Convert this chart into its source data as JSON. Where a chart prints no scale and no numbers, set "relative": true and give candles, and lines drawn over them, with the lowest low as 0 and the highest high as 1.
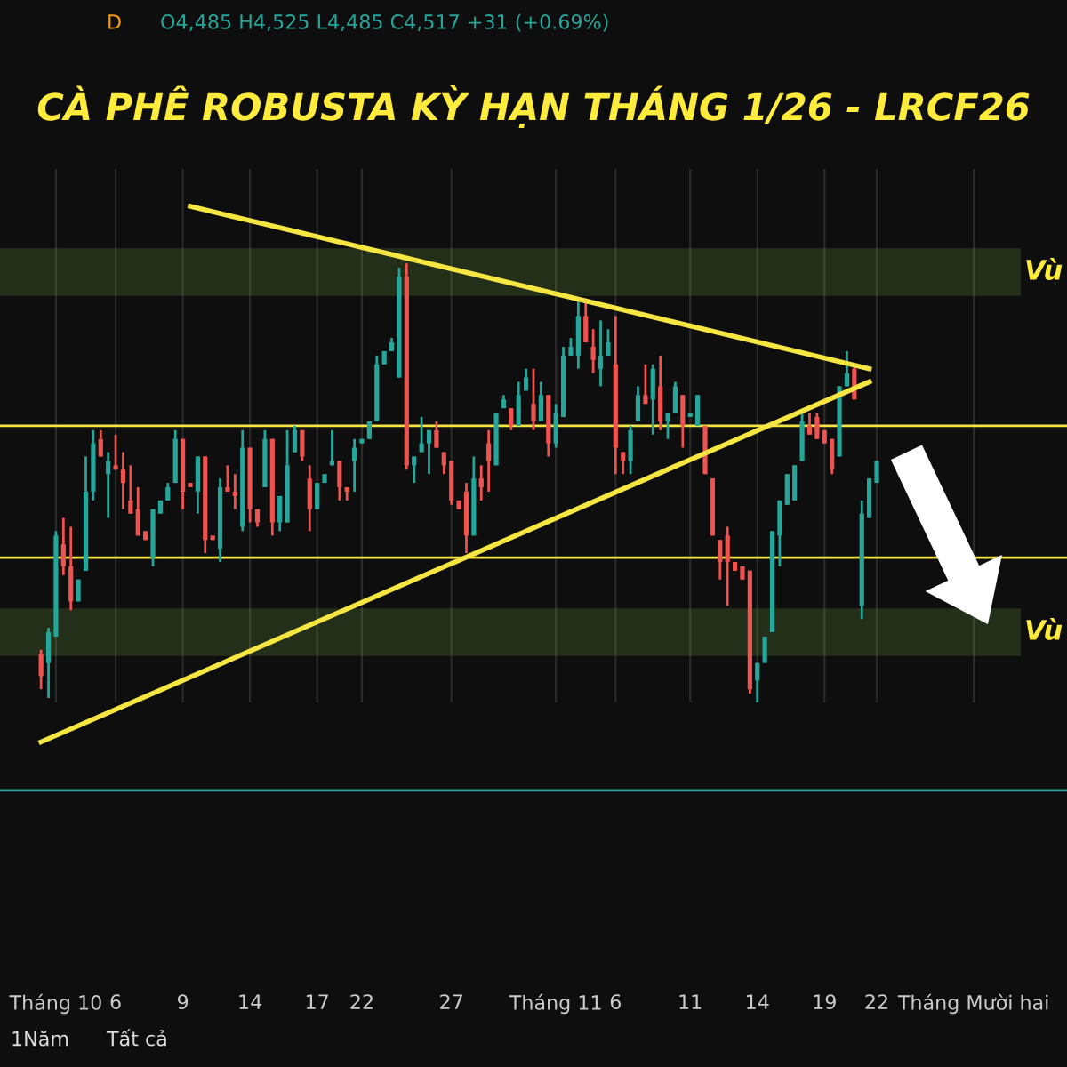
{
  "chart_data": {
    "type": "candlestick",
    "title": "CÀ PHÊ ROBUSTA KỲ HẠN THÁNG 1/26 - LRCF26",
    "relative": true,
    "categories": [
      null,
      null,
      "Tháng 10",
      null,
      null,
      null,
      null,
      null,
      null,
      null,
      "6",
      null,
      null,
      null,
      null,
      null,
      null,
      null,
      null,
      "9",
      null,
      null,
      null,
      null,
      null,
      null,
      null,
      null,
      "14",
      null,
      null,
      null,
      null,
      null,
      null,
      null,
      null,
      "17",
      null,
      null,
      null,
      null,
      null,
      "22",
      null,
      null,
      null,
      null,
      null,
      null,
      null,
      null,
      null,
      null,
      null,
      "27",
      null,
      null,
      null,
      null,
      null,
      null,
      null,
      null,
      null,
      null,
      null,
      null,
      null,
      "Tháng 11",
      null,
      null,
      null,
      null,
      null,
      null,
      null,
      "6",
      null,
      null,
      null,
      null,
      null,
      null,
      null,
      null,
      null,
      "11",
      null,
      null,
      null,
      null,
      null,
      null,
      null,
      null,
      "14",
      null,
      null,
      null,
      null,
      null,
      null,
      null,
      null,
      "19",
      null,
      null,
      null,
      null,
      null,
      null,
      "22",
      null,
      null,
      null,
      null,
      null,
      null,
      null,
      null,
      null,
      null,
      null,
      null,
      "Tháng Mười hai",
      null,
      null,
      null,
      null,
      null,
      null,
      null,
      null,
      null,
      null,
      null,
      null
    ],
    "colors": [
      "#ef5350",
      "#26a69a",
      "#26a69a",
      "#ef5350",
      "#ef5350",
      "#26a69a",
      "#26a69a",
      "#26a69a",
      "#ef5350",
      "#26a69a",
      "#ef5350",
      "#ef5350",
      "#ef5350",
      "#ef5350",
      "#ef5350",
      "#26a69a",
      "#26a69a",
      "#26a69a",
      "#26a69a",
      "#ef5350",
      "#ef5350",
      "#26a69a",
      "#ef5350",
      "#ef5350",
      "#26a69a",
      "#ef5350",
      "#ef5350",
      "#26a69a",
      "#ef5350",
      "#ef5350",
      "#26a69a",
      "#ef5350",
      "#26a69a",
      "#26a69a",
      "#26a69a",
      "#ef5350",
      "#ef5350",
      "#26a69a",
      "#26a69a",
      "#26a69a",
      "#ef5350",
      "#ef5350",
      "#26a69a",
      "#26a69a",
      "#26a69a",
      "#26a69a",
      "#26a69a",
      "#26a69a",
      "#26a69a",
      "#ef5350",
      "#26a69a",
      "#26a69a",
      "#26a69a",
      "#ef5350",
      "#ef5350",
      "#ef5350",
      "#ef5350",
      "#ef5350",
      "#26a69a",
      "#ef5350",
      "#ef5350",
      "#26a69a",
      "#26a69a",
      "#ef5350",
      "#26a69a",
      "#26a69a",
      "#ef5350",
      "#26a69a",
      "#ef5350",
      "#26a69a",
      "#26a69a",
      "#26a69a",
      "#26a69a",
      "#ef5350",
      "#ef5350",
      "#26a69a",
      "#26a69a",
      "#ef5350",
      "#ef5350",
      "#26a69a",
      "#26a69a",
      "#ef5350",
      "#26a69a",
      "#ef5350",
      "#26a69a",
      "#26a69a",
      "#ef5350",
      "#26a69a",
      "#26a69a",
      "#ef5350",
      "#ef5350",
      "#ef5350",
      "#ef5350",
      "#ef5350",
      "#ef5350",
      "#ef5350",
      "#26a69a",
      "#26a69a",
      "#26a69a",
      "#26a69a",
      "#26a69a",
      "#26a69a",
      "#26a69a",
      "#ef5350",
      "#ef5350",
      "#ef5350",
      "#ef5350",
      "#26a69a",
      "#26a69a",
      "#ef5350",
      "#26a69a",
      "#26a69a",
      "#26a69a",
      null,
      null,
      null,
      null,
      null,
      null,
      null,
      null,
      null,
      null,
      null,
      null,
      null,
      null,
      null,
      null,
      null,
      null,
      null,
      null,
      null,
      null,
      null,
      null,
      null
    ],
    "ohlc": [
      [
        0.11,
        0.12,
        0.03,
        0.06
      ],
      [
        0.09,
        0.17,
        0.01,
        0.16
      ],
      [
        0.15,
        0.39,
        0.15,
        0.38
      ],
      [
        0.36,
        0.42,
        0.29,
        0.31
      ],
      [
        0.31,
        0.4,
        0.21,
        0.23
      ],
      [
        0.23,
        0.28,
        0.23,
        0.28
      ],
      [
        0.3,
        0.56,
        0.3,
        0.48
      ],
      [
        0.48,
        0.62,
        0.46,
        0.59
      ],
      [
        0.6,
        0.62,
        0.56,
        0.56
      ],
      [
        0.52,
        0.57,
        0.42,
        0.55
      ],
      [
        0.54,
        0.61,
        0.53,
        0.53
      ],
      [
        0.53,
        0.57,
        0.44,
        0.5
      ],
      [
        0.46,
        0.54,
        0.43,
        0.43
      ],
      [
        0.44,
        0.49,
        0.38,
        0.38
      ],
      [
        0.39,
        0.39,
        0.37,
        0.37
      ],
      [
        0.33,
        0.44,
        0.31,
        0.44
      ],
      [
        0.43,
        0.46,
        0.43,
        0.46
      ],
      [
        0.46,
        0.5,
        0.46,
        0.49
      ],
      [
        0.5,
        0.62,
        0.5,
        0.6
      ],
      [
        0.6,
        0.6,
        0.44,
        0.48
      ],
      [
        0.5,
        0.5,
        0.49,
        0.49
      ],
      [
        0.48,
        0.56,
        0.43,
        0.56
      ],
      [
        0.56,
        0.56,
        0.34,
        0.37
      ],
      [
        0.38,
        0.38,
        0.37,
        0.37
      ],
      [
        0.35,
        0.51,
        0.32,
        0.49
      ],
      [
        0.49,
        0.54,
        0.48,
        0.48
      ],
      [
        0.48,
        0.52,
        0.44,
        0.47
      ],
      [
        0.4,
        0.62,
        0.39,
        0.58
      ],
      [
        0.58,
        0.58,
        0.41,
        0.44
      ],
      [
        0.44,
        0.44,
        0.4,
        0.41
      ],
      [
        0.49,
        0.62,
        0.49,
        0.6
      ],
      [
        0.6,
        0.6,
        0.38,
        0.41
      ],
      [
        0.41,
        0.47,
        0.39,
        0.47
      ],
      [
        0.41,
        0.62,
        0.41,
        0.54
      ],
      [
        0.57,
        0.63,
        0.57,
        0.62
      ],
      [
        0.62,
        0.62,
        0.55,
        0.56
      ],
      [
        0.51,
        0.54,
        0.39,
        0.44
      ],
      [
        0.44,
        0.5,
        0.44,
        0.5
      ],
      [
        0.5,
        0.52,
        0.5,
        0.52
      ],
      [
        0.54,
        0.62,
        0.54,
        0.55
      ],
      [
        0.55,
        0.55,
        0.46,
        0.49
      ],
      [
        0.49,
        0.49,
        0.46,
        0.48
      ],
      [
        0.55,
        0.6,
        0.48,
        0.58
      ],
      [
        0.59,
        0.6,
        0.59,
        0.6
      ],
      [
        0.6,
        0.64,
        0.6,
        0.64
      ],
      [
        0.64,
        0.79,
        0.64,
        0.77
      ],
      [
        0.77,
        0.8,
        0.77,
        0.8
      ],
      [
        0.8,
        0.83,
        0.8,
        0.82
      ],
      [
        0.74,
        0.99,
        0.74,
        0.97
      ],
      [
        0.97,
        1.0,
        0.53,
        0.54
      ],
      [
        0.54,
        0.56,
        0.5,
        0.56
      ],
      [
        0.57,
        0.65,
        0.57,
        0.59
      ],
      [
        0.59,
        0.62,
        0.52,
        0.62
      ],
      [
        0.62,
        0.64,
        0.58,
        0.58
      ],
      [
        0.57,
        0.57,
        0.52,
        0.54
      ],
      [
        0.55,
        0.55,
        0.45,
        0.46
      ],
      [
        0.46,
        0.46,
        0.44,
        0.44
      ],
      [
        0.48,
        0.5,
        0.34,
        0.38
      ],
      [
        0.38,
        0.56,
        0.38,
        0.51
      ],
      [
        0.51,
        0.54,
        0.46,
        0.49
      ],
      [
        0.59,
        0.62,
        0.48,
        0.55
      ],
      [
        0.54,
        0.66,
        0.54,
        0.66
      ],
      [
        0.67,
        0.7,
        0.67,
        0.69
      ],
      [
        0.67,
        0.67,
        0.62,
        0.63
      ],
      [
        0.63,
        0.73,
        0.63,
        0.7
      ],
      [
        0.71,
        0.76,
        0.71,
        0.74
      ],
      [
        0.68,
        0.76,
        0.62,
        0.64
      ],
      [
        0.64,
        0.73,
        0.64,
        0.7
      ],
      [
        0.7,
        0.7,
        0.56,
        0.59
      ],
      [
        0.59,
        0.68,
        0.58,
        0.66
      ],
      [
        0.65,
        0.81,
        0.65,
        0.79
      ],
      [
        0.79,
        0.83,
        0.79,
        0.81
      ],
      [
        0.79,
        0.92,
        0.76,
        0.88
      ],
      [
        0.88,
        0.92,
        0.82,
        0.82
      ],
      [
        0.81,
        0.85,
        0.75,
        0.78
      ],
      [
        0.76,
        0.87,
        0.72,
        0.79
      ],
      [
        0.79,
        0.85,
        0.79,
        0.82
      ],
      [
        0.77,
        0.88,
        0.52,
        0.58
      ],
      [
        0.57,
        0.57,
        0.52,
        0.55
      ],
      [
        0.55,
        0.63,
        0.52,
        0.62
      ],
      [
        0.64,
        0.72,
        0.64,
        0.7
      ],
      [
        0.7,
        0.77,
        0.68,
        0.68
      ],
      [
        0.69,
        0.77,
        0.61,
        0.76
      ],
      [
        0.72,
        0.79,
        0.62,
        0.64
      ],
      [
        0.64,
        0.66,
        0.6,
        0.66
      ],
      [
        0.66,
        0.73,
        0.66,
        0.72
      ],
      [
        0.7,
        0.7,
        0.58,
        0.63
      ],
      [
        0.65,
        0.66,
        0.65,
        0.66
      ],
      [
        0.63,
        0.7,
        0.63,
        0.7
      ],
      [
        0.63,
        0.63,
        0.52,
        0.52
      ],
      [
        0.51,
        0.51,
        0.38,
        0.38
      ],
      [
        0.37,
        0.37,
        0.28,
        0.32
      ],
      [
        0.38,
        0.4,
        0.22,
        0.32
      ],
      [
        0.32,
        0.32,
        0.3,
        0.3
      ],
      [
        0.31,
        0.31,
        0.28,
        0.28
      ],
      [
        0.3,
        0.3,
        0.02,
        0.03
      ],
      [
        0.05,
        0.09,
        0.0,
        0.09
      ],
      [
        0.09,
        0.15,
        0.09,
        0.15
      ],
      [
        0.16,
        0.39,
        0.16,
        0.39
      ],
      [
        0.38,
        0.46,
        0.31,
        0.46
      ],
      [
        0.45,
        0.52,
        0.45,
        0.52
      ],
      [
        0.46,
        0.54,
        0.46,
        0.54
      ],
      [
        0.55,
        0.66,
        0.55,
        0.64
      ],
      [
        0.63,
        0.66,
        0.61,
        0.61
      ],
      [
        0.65,
        0.66,
        0.6,
        0.6
      ],
      [
        0.62,
        0.62,
        0.59,
        0.59
      ],
      [
        0.6,
        0.6,
        0.52,
        0.53
      ],
      [
        0.56,
        0.72,
        0.56,
        0.72
      ],
      [
        0.72,
        0.8,
        0.72,
        0.75
      ],
      [
        0.76,
        0.77,
        0.69,
        0.69
      ],
      [
        0.22,
        0.46,
        0.19,
        0.43
      ],
      [
        0.42,
        0.51,
        0.42,
        0.51
      ],
      [
        0.5,
        0.55,
        0.5,
        0.55
      ],
      null,
      null,
      null,
      null,
      null,
      null,
      null,
      null,
      null,
      null,
      null,
      null,
      null,
      null,
      null,
      null,
      null,
      null,
      null,
      null,
      null,
      null,
      null,
      null,
      null
    ],
    "series": [
      {
        "type": "line",
        "color": "#f5e642",
        "values": [
          null,
          null,
          null,
          null,
          null,
          null,
          null,
          null,
          null,
          null,
          null,
          null,
          null,
          null,
          null,
          null,
          null,
          null,
          null,
          null,
          1.13,
          null,
          null,
          null,
          null,
          null,
          null,
          null,
          null,
          null,
          null,
          null,
          null,
          null,
          null,
          null,
          null,
          null,
          null,
          null,
          null,
          null,
          null,
          null,
          null,
          null,
          null,
          null,
          null,
          null,
          null,
          null,
          null,
          null,
          null,
          null,
          null,
          null,
          null,
          null,
          null,
          null,
          null,
          null,
          null,
          null,
          null,
          null,
          null,
          null,
          null,
          null,
          null,
          null,
          null,
          null,
          null,
          null,
          null,
          null,
          null,
          null,
          null,
          null,
          null,
          null,
          null,
          null,
          null,
          null,
          null,
          null,
          null,
          null,
          null,
          null,
          null,
          null,
          null,
          null,
          null,
          null,
          null,
          null,
          null,
          null,
          null,
          null,
          null,
          null,
          null,
          0.76,
          null,
          null,
          null,
          null,
          null,
          null,
          null,
          null,
          null,
          null,
          null,
          null,
          null,
          null,
          null,
          null,
          null,
          null,
          null,
          null,
          null,
          null,
          null,
          null,
          null,
          null
        ]
      },
      {
        "type": "line",
        "color": "#f5e642",
        "values": [
          -0.09,
          null,
          null,
          null,
          null,
          null,
          null,
          null,
          null,
          null,
          null,
          null,
          null,
          null,
          null,
          null,
          null,
          null,
          null,
          null,
          null,
          null,
          null,
          null,
          null,
          null,
          null,
          null,
          null,
          null,
          null,
          null,
          null,
          null,
          null,
          null,
          null,
          null,
          null,
          null,
          null,
          null,
          null,
          null,
          null,
          null,
          null,
          null,
          null,
          null,
          null,
          null,
          null,
          null,
          null,
          null,
          null,
          null,
          null,
          null,
          null,
          null,
          null,
          null,
          null,
          null,
          null,
          null,
          null,
          null,
          null,
          null,
          null,
          null,
          null,
          null,
          null,
          null,
          null,
          null,
          null,
          null,
          null,
          null,
          null,
          null,
          null,
          null,
          null,
          null,
          null,
          null,
          null,
          null,
          null,
          null,
          null,
          null,
          null,
          null,
          null,
          null,
          null,
          null,
          null,
          null,
          null,
          null,
          null,
          null,
          null,
          0.73,
          null,
          null,
          null,
          null,
          null,
          null,
          null,
          null,
          null,
          null,
          null,
          null,
          null,
          null,
          null,
          null,
          null,
          null,
          null,
          null,
          null,
          null,
          null,
          null,
          null,
          null
        ]
      }
    ],
    "ref_lines": [
      {
        "axis": "y",
        "value": 0.63,
        "color": "#f5e642"
      },
      {
        "axis": "y",
        "value": 0.33,
        "color": "#f5e642"
      },
      {
        "axis": "y",
        "value": -0.2,
        "color": "#26a69a"
      }
    ],
    "bands": [
      {
        "axis": "y",
        "from": 0.93,
        "to": 1.03,
        "label": "Vù",
        "color": "#8bc34a"
      },
      {
        "axis": "y",
        "from": 0.11,
        "to": 0.21,
        "label": "Vù",
        "color": "#8bc34a"
      }
    ],
    "annotations": [
      "D",
      "O4,485 H4,525 L4,485 C4,517 +31 (+0.69%)",
      "1Năm",
      "Tất cả"
    ],
    "grid": "x"
  }
}
